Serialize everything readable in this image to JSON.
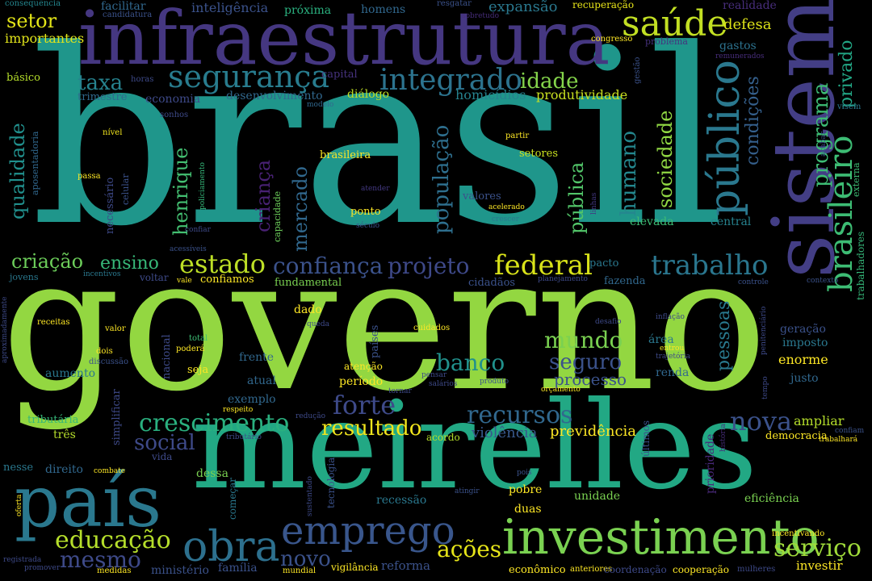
{
  "background": "#000000",
  "palette": {
    "v1": "#3f2a6e",
    "v2": "#46317e",
    "v3": "#3a4c8a",
    "v4": "#31688e",
    "v5": "#26828e",
    "v6": "#1f9a8a",
    "v7": "#35b779",
    "v8": "#6ece58",
    "v9": "#a0da39",
    "v10": "#d2e21b",
    "v11": "#fde725"
  },
  "words": [
    {
      "text": "brasil",
      "color": "#1f968b"
    },
    {
      "text": "governo",
      "color": "#93d741"
    },
    {
      "text": "meirelles",
      "color": "#22a884"
    },
    {
      "text": "infraestrutura",
      "color": "#453781"
    },
    {
      "text": "sistema",
      "color": "#433e85"
    },
    {
      "text": "país",
      "color": "#2a788e"
    },
    {
      "text": "investimento",
      "color": "#7ad151"
    },
    {
      "text": "emprego",
      "color": "#39568c"
    },
    {
      "text": "obra",
      "color": "#2d708e"
    },
    {
      "text": "saúde",
      "color": "#c2df23"
    },
    {
      "text": "público",
      "color": "#2a788e"
    },
    {
      "text": "brasileiro",
      "color": "#3dbc74"
    },
    {
      "text": "segurança",
      "color": "#287c8e"
    },
    {
      "text": "integrado",
      "color": "#2c738e"
    },
    {
      "text": "trabalho",
      "color": "#2a768e"
    },
    {
      "text": "federal",
      "color": "#d8e219"
    },
    {
      "text": "estado",
      "color": "#bddf26"
    },
    {
      "text": "confiança",
      "color": "#3b528b"
    },
    {
      "text": "projeto",
      "color": "#3e4989"
    },
    {
      "text": "crescimento",
      "color": "#2ab07f"
    },
    {
      "text": "recursos",
      "color": "#31688e"
    },
    {
      "text": "nova",
      "color": "#3b528b"
    },
    {
      "text": "forte",
      "color": "#3e4a89"
    },
    {
      "text": "educação",
      "color": "#b5de2b"
    },
    {
      "text": "mesmo",
      "color": "#3e4a89"
    },
    {
      "text": "serviço",
      "color": "#9fda3a"
    },
    {
      "text": "ações",
      "color": "#e5e419"
    },
    {
      "text": "resultado",
      "color": "#f1e51d"
    },
    {
      "text": "banco",
      "color": "#21918c"
    },
    {
      "text": "mundo",
      "color": "#7ad151"
    },
    {
      "text": "seguro",
      "color": "#3b528b"
    },
    {
      "text": "social",
      "color": "#3e4a89"
    },
    {
      "text": "novo",
      "color": "#3b528b"
    },
    {
      "text": "taxa",
      "color": "#26828e"
    },
    {
      "text": "setor",
      "color": "#e2e418"
    },
    {
      "text": "criação",
      "color": "#6ccd5a"
    },
    {
      "text": "ensino",
      "color": "#37b878"
    },
    {
      "text": "humano",
      "color": "#24878e"
    },
    {
      "text": "sociedade",
      "color": "#90d743"
    },
    {
      "text": "população",
      "color": "#2e6f8e"
    },
    {
      "text": "mercado",
      "color": "#31688e"
    },
    {
      "text": "pública",
      "color": "#52c569"
    },
    {
      "text": "programa",
      "color": "#3dbc74"
    },
    {
      "text": "privado",
      "color": "#22a785"
    },
    {
      "text": "qualidade",
      "color": "#21908d"
    },
    {
      "text": "henrique",
      "color": "#43bf71"
    },
    {
      "text": "criança",
      "color": "#482173"
    },
    {
      "text": "idade",
      "color": "#84d44b"
    },
    {
      "text": "condições",
      "color": "#35608d"
    },
    {
      "text": "pessoas",
      "color": "#29798e"
    },
    {
      "text": "processo",
      "color": "#3b528b"
    },
    {
      "text": "previdência",
      "color": "#fde725"
    },
    {
      "text": "violência",
      "color": "#38598c"
    },
    {
      "text": "inteligência",
      "color": "#3b528b"
    },
    {
      "text": "expansão",
      "color": "#2a788e"
    },
    {
      "text": "defesa",
      "color": "#dde318"
    },
    {
      "text": "importantes",
      "color": "#e0e31a"
    },
    {
      "text": "homicídios",
      "color": "#26828e"
    },
    {
      "text": "produtividade",
      "color": "#c8e020"
    },
    {
      "text": "desenvolvimento",
      "color": "#31688e"
    },
    {
      "text": "economia",
      "color": "#3e4a89"
    },
    {
      "text": "trimestre",
      "color": "#30698e"
    },
    {
      "text": "diálogo",
      "color": "#c0df25"
    },
    {
      "text": "capital",
      "color": "#46327e"
    },
    {
      "text": "básico",
      "color": "#b5de2b"
    },
    {
      "text": "próxima",
      "color": "#2ab07f"
    },
    {
      "text": "homens",
      "color": "#31688e"
    },
    {
      "text": "facilitar",
      "color": "#31688e"
    },
    {
      "text": "consequência",
      "color": "#24868e"
    },
    {
      "text": "candidatura",
      "color": "#3b528b"
    },
    {
      "text": "resgatar",
      "color": "#3b528b"
    },
    {
      "text": "sobretudo",
      "color": "#472d7b"
    },
    {
      "text": "recuperação",
      "color": "#e7e419"
    },
    {
      "text": "realidade",
      "color": "#472d7b"
    },
    {
      "text": "congresso",
      "color": "#fde725"
    },
    {
      "text": "problema",
      "color": "#46327e"
    },
    {
      "text": "gastos",
      "color": "#2c728e"
    },
    {
      "text": "remunerados",
      "color": "#472d7b"
    },
    {
      "text": "gestão",
      "color": "#3b528b"
    },
    {
      "text": "horas",
      "color": "#3e4a89"
    },
    {
      "text": "modelo",
      "color": "#31688e"
    },
    {
      "text": "sonhos",
      "color": "#3e4a89"
    },
    {
      "text": "visem",
      "color": "#2a788e"
    },
    {
      "text": "aposentadoria",
      "color": "#31688e"
    },
    {
      "text": "nível",
      "color": "#f1e51d"
    },
    {
      "text": "partir",
      "color": "#fde725"
    },
    {
      "text": "setores",
      "color": "#c8e020"
    },
    {
      "text": "brasileira",
      "color": "#fde725"
    },
    {
      "text": "acabar",
      "color": "#3b528b"
    },
    {
      "text": "externa",
      "color": "#3dbc74"
    },
    {
      "text": "trabalhadores",
      "color": "#35b779"
    },
    {
      "text": "necessário",
      "color": "#3e4a89"
    },
    {
      "text": "celular",
      "color": "#3b528b"
    },
    {
      "text": "passa",
      "color": "#fde725"
    },
    {
      "text": "policiamento",
      "color": "#35b779"
    },
    {
      "text": "capacidade",
      "color": "#6ccd5a"
    },
    {
      "text": "confiar",
      "color": "#3e4a89"
    },
    {
      "text": "atender",
      "color": "#443983"
    },
    {
      "text": "linhas",
      "color": "#443983"
    },
    {
      "text": "valores",
      "color": "#3b528b"
    },
    {
      "text": "acelerado",
      "color": "#fde725"
    },
    {
      "text": "crescer",
      "color": "#2a788e"
    },
    {
      "text": "ponto",
      "color": "#fde725"
    },
    {
      "text": "século",
      "color": "#3b528b"
    },
    {
      "text": "elevada",
      "color": "#3dbc74"
    },
    {
      "text": "central",
      "color": "#26828e"
    },
    {
      "text": "acessíveis",
      "color": "#3b528b"
    },
    {
      "text": "jovens",
      "color": "#2a788e"
    },
    {
      "text": "incentivos",
      "color": "#2a788e"
    },
    {
      "text": "voltar",
      "color": "#3e4a89"
    },
    {
      "text": "vale",
      "color": "#fde725"
    },
    {
      "text": "confiamos",
      "color": "#fde725"
    },
    {
      "text": "fundamental",
      "color": "#7ad151"
    },
    {
      "text": "cidadãos",
      "color": "#3b528b"
    },
    {
      "text": "planejamento",
      "color": "#3e4a89"
    },
    {
      "text": "pacto",
      "color": "#2a788e"
    },
    {
      "text": "fazenda",
      "color": "#31688e"
    },
    {
      "text": "controle",
      "color": "#3b528b"
    },
    {
      "text": "contexto",
      "color": "#3b528b"
    },
    {
      "text": "aproximadamente",
      "color": "#3e4a89"
    },
    {
      "text": "receitas",
      "color": "#fde725"
    },
    {
      "text": "valor",
      "color": "#fde725"
    },
    {
      "text": "total",
      "color": "#3dbc74"
    },
    {
      "text": "poderá",
      "color": "#fde725"
    },
    {
      "text": "dado",
      "color": "#fde725"
    },
    {
      "text": "queda",
      "color": "#3e4a89"
    },
    {
      "text": "países",
      "color": "#3b528b"
    },
    {
      "text": "cuidados",
      "color": "#fde725"
    },
    {
      "text": "desafio",
      "color": "#3e4a89"
    },
    {
      "text": "inflação",
      "color": "#3e4a89"
    },
    {
      "text": "penitenciário",
      "color": "#3e4a89"
    },
    {
      "text": "geração",
      "color": "#3b528b"
    },
    {
      "text": "imposto",
      "color": "#2a788e"
    },
    {
      "text": "enorme",
      "color": "#fde725"
    },
    {
      "text": "justo",
      "color": "#31688e"
    },
    {
      "text": "área",
      "color": "#2a788e"
    },
    {
      "text": "entrou",
      "color": "#fde725"
    },
    {
      "text": "trajetória",
      "color": "#3e4a89"
    },
    {
      "text": "renda",
      "color": "#31688e"
    },
    {
      "text": "dois",
      "color": "#fde725"
    },
    {
      "text": "discussão",
      "color": "#3b528b"
    },
    {
      "text": "nacional",
      "color": "#3e4a89"
    },
    {
      "text": "seja",
      "color": "#fde725"
    },
    {
      "text": "frente",
      "color": "#31688e"
    },
    {
      "text": "atenção",
      "color": "#fde725"
    },
    {
      "text": "período",
      "color": "#fde725"
    },
    {
      "text": "atual",
      "color": "#31688e"
    },
    {
      "text": "pensar",
      "color": "#3e4a89"
    },
    {
      "text": "salários",
      "color": "#3e4a89"
    },
    {
      "text": "produto",
      "color": "#3b528b"
    },
    {
      "text": "orçamento",
      "color": "#fde725"
    },
    {
      "text": "tornar",
      "color": "#3e4a89"
    },
    {
      "text": "tempo",
      "color": "#3e4a89"
    },
    {
      "text": "aumento",
      "color": "#2a788e"
    },
    {
      "text": "simplificar",
      "color": "#3e4a89"
    },
    {
      "text": "exemplo",
      "color": "#31688e"
    },
    {
      "text": "respeito",
      "color": "#fde725"
    },
    {
      "text": "redução",
      "color": "#3e4a89"
    },
    {
      "text": "tributária",
      "color": "#35b779"
    },
    {
      "text": "tributário",
      "color": "#3e4a89"
    },
    {
      "text": "três",
      "color": "#b5de2b"
    },
    {
      "text": "vida",
      "color": "#3e4a89"
    },
    {
      "text": "acordo",
      "color": "#b5de2b"
    },
    {
      "text": "ampliar",
      "color": "#b5de2b"
    },
    {
      "text": "democracia",
      "color": "#fde725"
    },
    {
      "text": "história",
      "color": "#472d7b"
    },
    {
      "text": "confiam",
      "color": "#3b528b"
    },
    {
      "text": "trabalhará",
      "color": "#fde725"
    },
    {
      "text": "últimos",
      "color": "#3b528b"
    },
    {
      "text": "prioridade",
      "color": "#482878"
    },
    {
      "text": "nesse",
      "color": "#2a788e"
    },
    {
      "text": "direito",
      "color": "#31688e"
    },
    {
      "text": "combate",
      "color": "#fde725"
    },
    {
      "text": "dessa",
      "color": "#7ad151"
    },
    {
      "text": "tecnologia",
      "color": "#3b528b"
    },
    {
      "text": "começar",
      "color": "#2a788e"
    },
    {
      "text": "sustentado",
      "color": "#3e4a89"
    },
    {
      "text": "recessão",
      "color": "#2a788e"
    },
    {
      "text": "duas",
      "color": "#fde725"
    },
    {
      "text": "pobre",
      "color": "#fde725"
    },
    {
      "text": "atingir",
      "color": "#3b528b"
    },
    {
      "text": "pois",
      "color": "#3b528b"
    },
    {
      "text": "unidade",
      "color": "#7ad151"
    },
    {
      "text": "eficiência",
      "color": "#7ad151"
    },
    {
      "text": "oferta",
      "color": "#fde725"
    },
    {
      "text": "registrada",
      "color": "#3e4a89"
    },
    {
      "text": "promover",
      "color": "#3e4a89"
    },
    {
      "text": "medidas",
      "color": "#fde725"
    },
    {
      "text": "ministério",
      "color": "#3b528b"
    },
    {
      "text": "família",
      "color": "#3b528b"
    },
    {
      "text": "mundial",
      "color": "#fde725"
    },
    {
      "text": "vigilância",
      "color": "#fde725"
    },
    {
      "text": "reforma",
      "color": "#3b528b"
    },
    {
      "text": "econômico",
      "color": "#fde725"
    },
    {
      "text": "anteriores",
      "color": "#fde725"
    },
    {
      "text": "coordenação",
      "color": "#3e4a89"
    },
    {
      "text": "cooperação",
      "color": "#fde725"
    },
    {
      "text": "mulheres",
      "color": "#3e4a89"
    },
    {
      "text": "investir",
      "color": "#fde725"
    },
    {
      "text": "incentivando",
      "color": "#fde725"
    }
  ]
}
